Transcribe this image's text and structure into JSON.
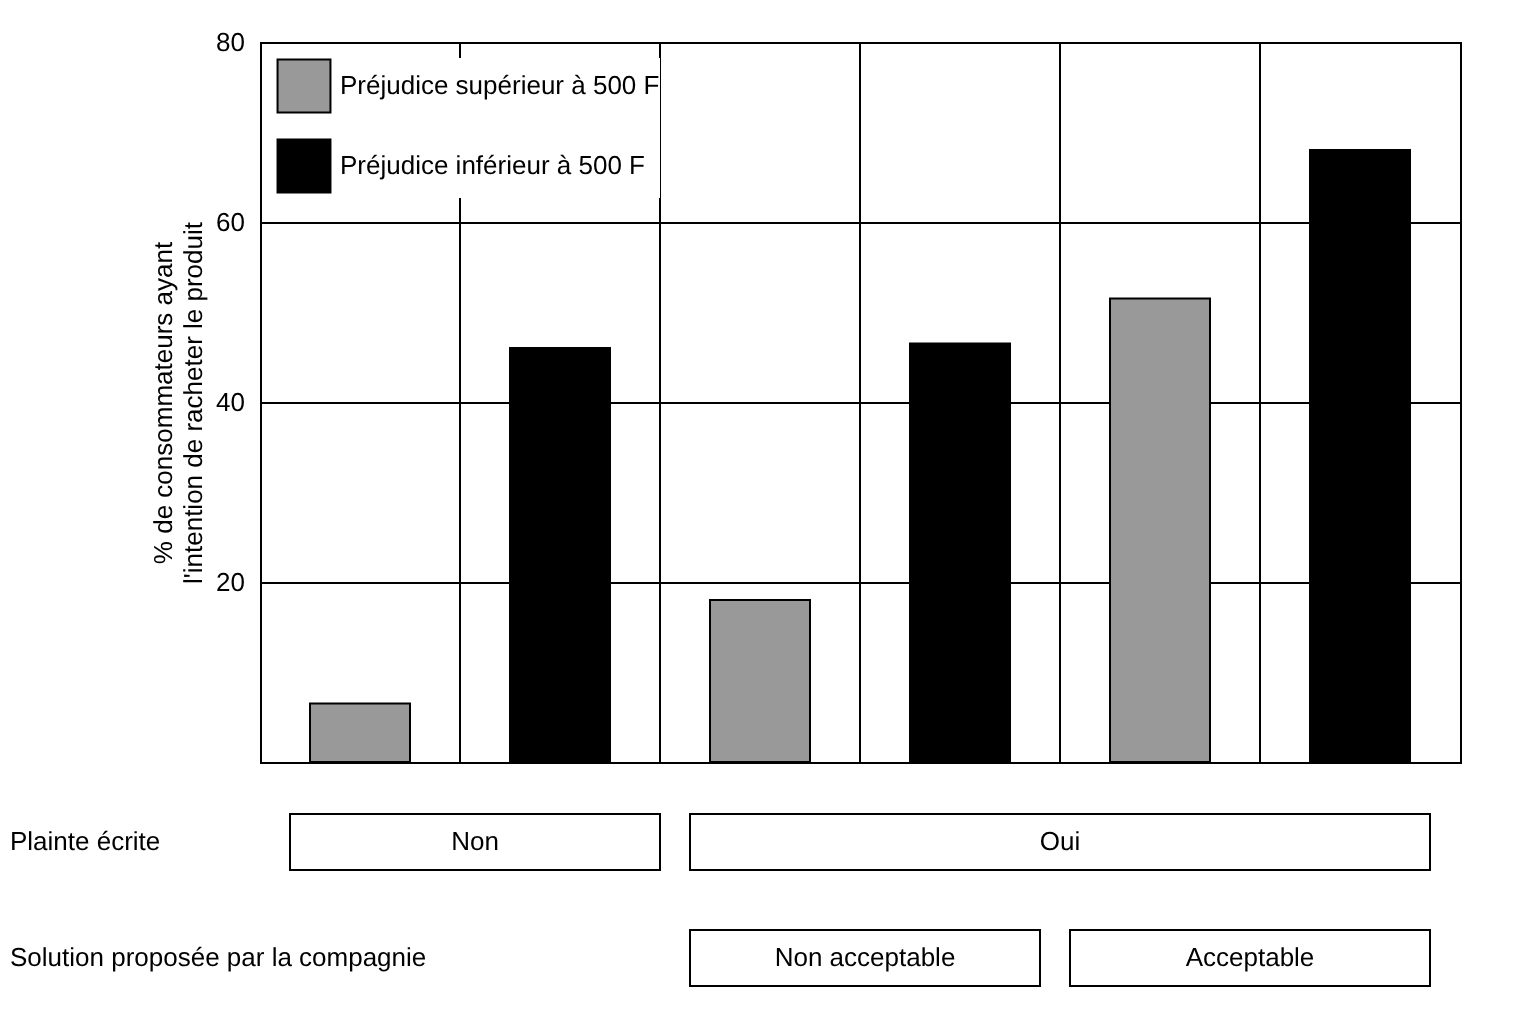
{
  "chart_data": {
    "type": "bar",
    "categories": [
      null,
      null,
      null
    ],
    "series": [
      {
        "name": "Préjudice supérieur à 500 F",
        "color": "#999999",
        "values": [
          6.5,
          18,
          51.5
        ]
      },
      {
        "name": "Préjudice inférieur à 500 F",
        "color": "#000000",
        "values": [
          46,
          46.5,
          68
        ]
      }
    ],
    "ylabel": "% de consommateurs ayant\nl'intention de racheter le produit",
    "ylim": [
      0,
      80
    ],
    "yticks": [
      20,
      40,
      60,
      80
    ],
    "grid": true,
    "legend": "top left",
    "annotations": [
      "Plainte écrite",
      "Non",
      "Oui",
      "Solution proposée par la compagnie",
      "Non acceptable",
      "Acceptable"
    ]
  }
}
